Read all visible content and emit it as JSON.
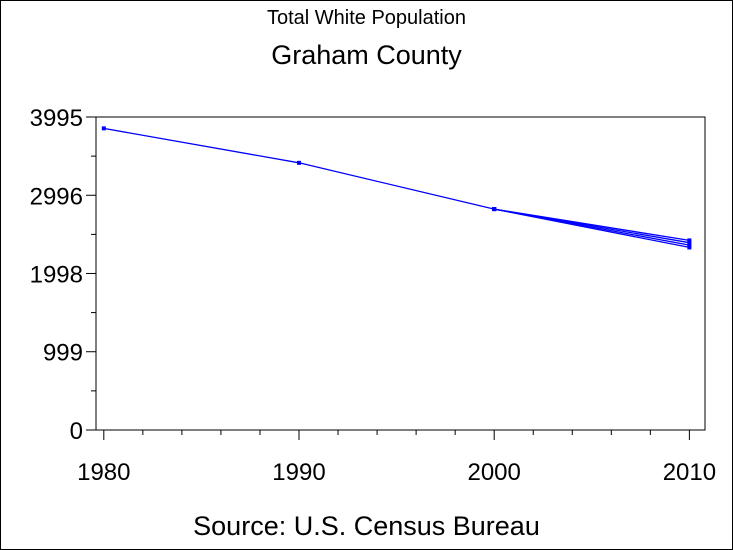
{
  "chart_data": {
    "type": "line",
    "title": "Total White Population",
    "subtitle": "Graham County",
    "footnote": "Source: U.S. Census Bureau",
    "xlabel": "",
    "ylabel": "",
    "x_ticks": [
      "1980",
      "1990",
      "2000",
      "2010"
    ],
    "y_ticks": [
      "0",
      "999",
      "1998",
      "2996",
      "3995"
    ],
    "xlim": [
      1979.6,
      2010.8
    ],
    "ylim": [
      0,
      3995
    ],
    "grid": false,
    "series": [
      {
        "values": [
          [
            1980,
            3850
          ],
          [
            1990,
            3410
          ],
          [
            2000,
            2820
          ],
          [
            2010,
            2420
          ]
        ]
      },
      {
        "values": [
          [
            2000,
            2820
          ],
          [
            2010,
            2390
          ]
        ]
      },
      {
        "values": [
          [
            2000,
            2820
          ],
          [
            2010,
            2360
          ]
        ]
      },
      {
        "values": [
          [
            2000,
            2820
          ],
          [
            2010,
            2330
          ]
        ]
      }
    ],
    "colors": {
      "line": "#0000ff",
      "axis": "#000000",
      "background": "#ffffff"
    }
  }
}
